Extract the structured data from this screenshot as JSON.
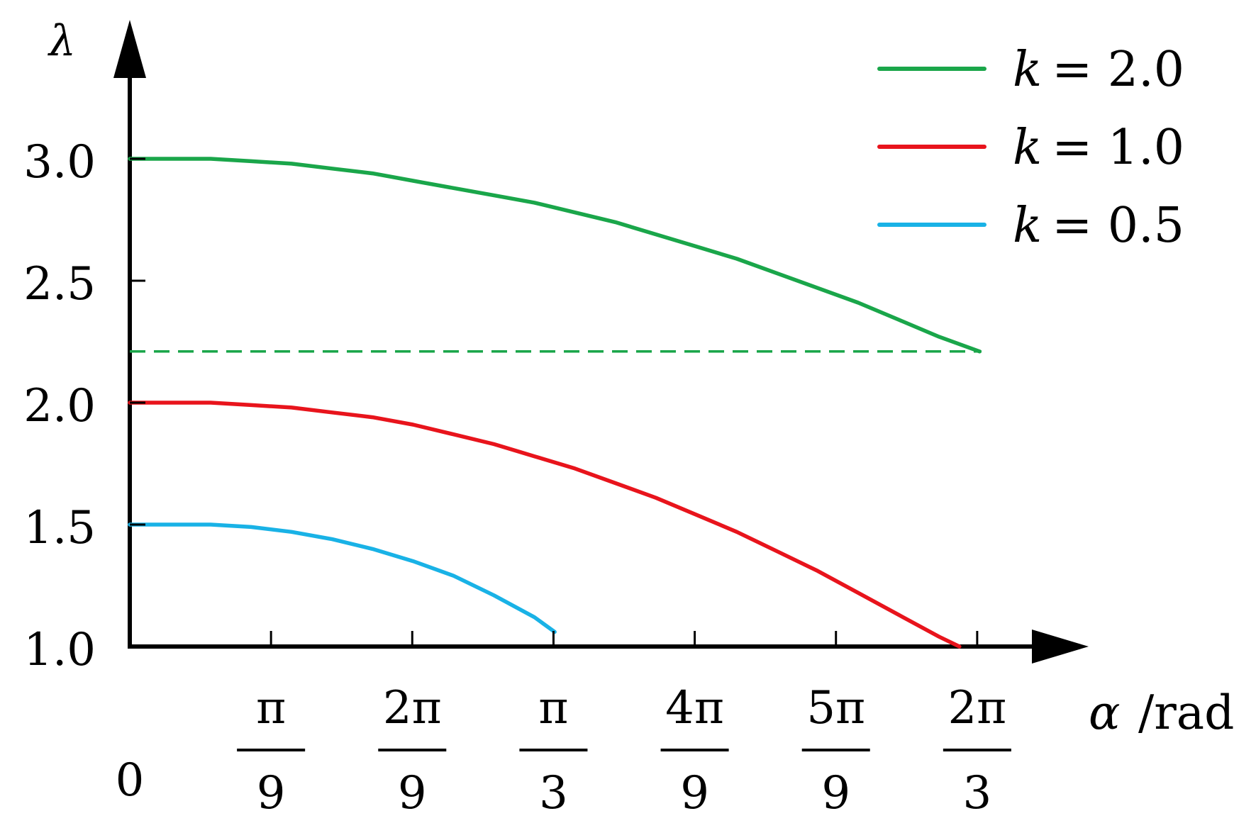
{
  "chart_data": {
    "type": "line",
    "ylabel": "λ",
    "xlabel_symbol": "α",
    "xlabel_unit": "/rad",
    "xlim": [
      0,
      2.1293
    ],
    "ylim": [
      1.0,
      3.0
    ],
    "grid": false,
    "legend_position": "top-right",
    "yticks": [
      {
        "value": 1.0,
        "label": "1.0"
      },
      {
        "value": 1.5,
        "label": "1.5"
      },
      {
        "value": 2.0,
        "label": "2.0"
      },
      {
        "value": 2.5,
        "label": "2.5"
      },
      {
        "value": 3.0,
        "label": "3.0"
      }
    ],
    "xticks": [
      {
        "value": 0,
        "label": "0"
      },
      {
        "value": 0.349,
        "num": "π",
        "den": "9"
      },
      {
        "value": 0.698,
        "num": "2π",
        "den": "9"
      },
      {
        "value": 1.047,
        "num": "π",
        "den": "3"
      },
      {
        "value": 1.396,
        "num": "4π",
        "den": "9"
      },
      {
        "value": 1.745,
        "num": "5π",
        "den": "9"
      },
      {
        "value": 2.094,
        "num": "2π",
        "den": "3"
      }
    ],
    "series": [
      {
        "name": "k = 2.0",
        "k_symbol": "k",
        "k_value": "= 2.0",
        "color": "#1aa64a",
        "x": [
          0.0,
          0.1,
          0.2,
          0.3,
          0.4,
          0.5,
          0.6,
          0.7,
          0.8,
          0.9,
          1.0,
          1.1,
          1.2,
          1.3,
          1.4,
          1.5,
          1.6,
          1.7,
          1.8,
          1.9,
          2.0,
          2.1
        ],
        "y": [
          3.0,
          3.0,
          3.0,
          2.99,
          2.98,
          2.96,
          2.94,
          2.91,
          2.88,
          2.85,
          2.82,
          2.78,
          2.74,
          2.69,
          2.64,
          2.59,
          2.53,
          2.47,
          2.41,
          2.34,
          2.27,
          2.21
        ]
      },
      {
        "name": "k = 1.0",
        "k_symbol": "k",
        "k_value": "= 1.0",
        "color": "#e8141c",
        "x": [
          0.0,
          0.1,
          0.2,
          0.3,
          0.4,
          0.5,
          0.6,
          0.7,
          0.8,
          0.9,
          1.0,
          1.1,
          1.2,
          1.3,
          1.4,
          1.5,
          1.6,
          1.7,
          1.8,
          1.9,
          2.0,
          2.05
        ],
        "y": [
          2.0,
          2.0,
          2.0,
          1.99,
          1.98,
          1.96,
          1.94,
          1.91,
          1.87,
          1.83,
          1.78,
          1.73,
          1.67,
          1.61,
          1.54,
          1.47,
          1.39,
          1.31,
          1.22,
          1.13,
          1.04,
          0.99
        ]
      },
      {
        "name": "k = 0.5",
        "k_symbol": "k",
        "k_value": "= 0.5",
        "color": "#19b2e6",
        "x": [
          0.0,
          0.1,
          0.2,
          0.3,
          0.4,
          0.5,
          0.6,
          0.7,
          0.8,
          0.9,
          1.0,
          1.05
        ],
        "y": [
          1.5,
          1.5,
          1.5,
          1.49,
          1.47,
          1.44,
          1.4,
          1.35,
          1.29,
          1.21,
          1.12,
          1.06
        ]
      }
    ],
    "reference_lines": [
      {
        "type": "horizontal",
        "y": 2.21,
        "color": "#1aa64a",
        "style": "dashed"
      }
    ]
  }
}
